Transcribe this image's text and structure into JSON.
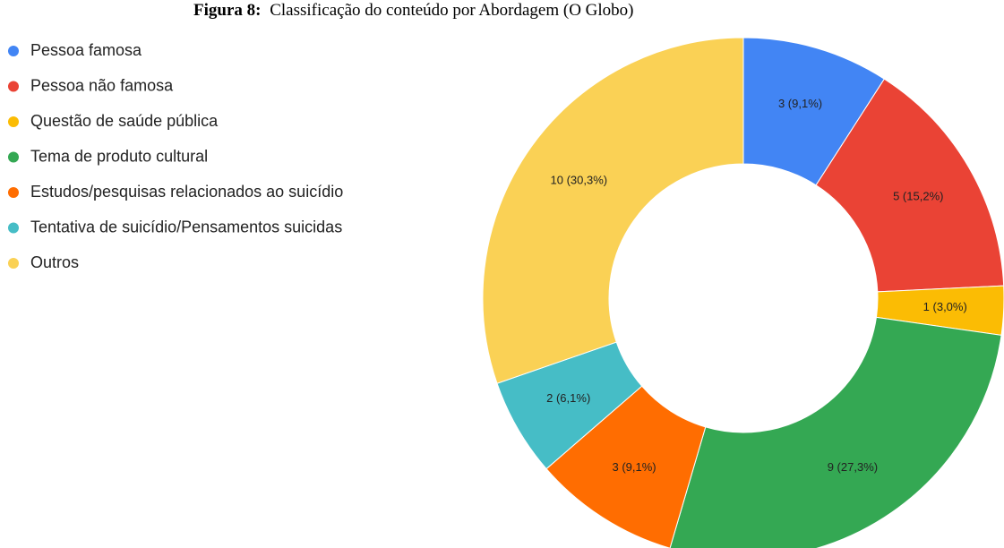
{
  "chart_data": {
    "type": "donut",
    "figure_label": "Figura 8:",
    "title": "Classificação do conteúdo por Abordagem (O Globo)",
    "categories": [
      "Pessoa famosa",
      "Pessoa não famosa",
      "Questão de saúde pública",
      "Tema de produto cultural",
      "Estudos/pesquisas relacionados ao suicídio",
      "Tentativa de suicídio/Pensamentos suicidas",
      "Outros"
    ],
    "values": [
      3,
      5,
      1,
      9,
      3,
      2,
      10
    ],
    "value_labels": [
      "3 (9,1%)",
      "5 (15,2%)",
      "1 (3,0%)",
      "9 (27,3%)",
      "3 (9,1%)",
      "2 (6,1%)",
      "10 (30,3%)"
    ],
    "colors": [
      "#4285f4",
      "#ea4335",
      "#fbbc04",
      "#34a853",
      "#ff6d01",
      "#46bdc6",
      "#fad155"
    ],
    "legend": "left"
  }
}
